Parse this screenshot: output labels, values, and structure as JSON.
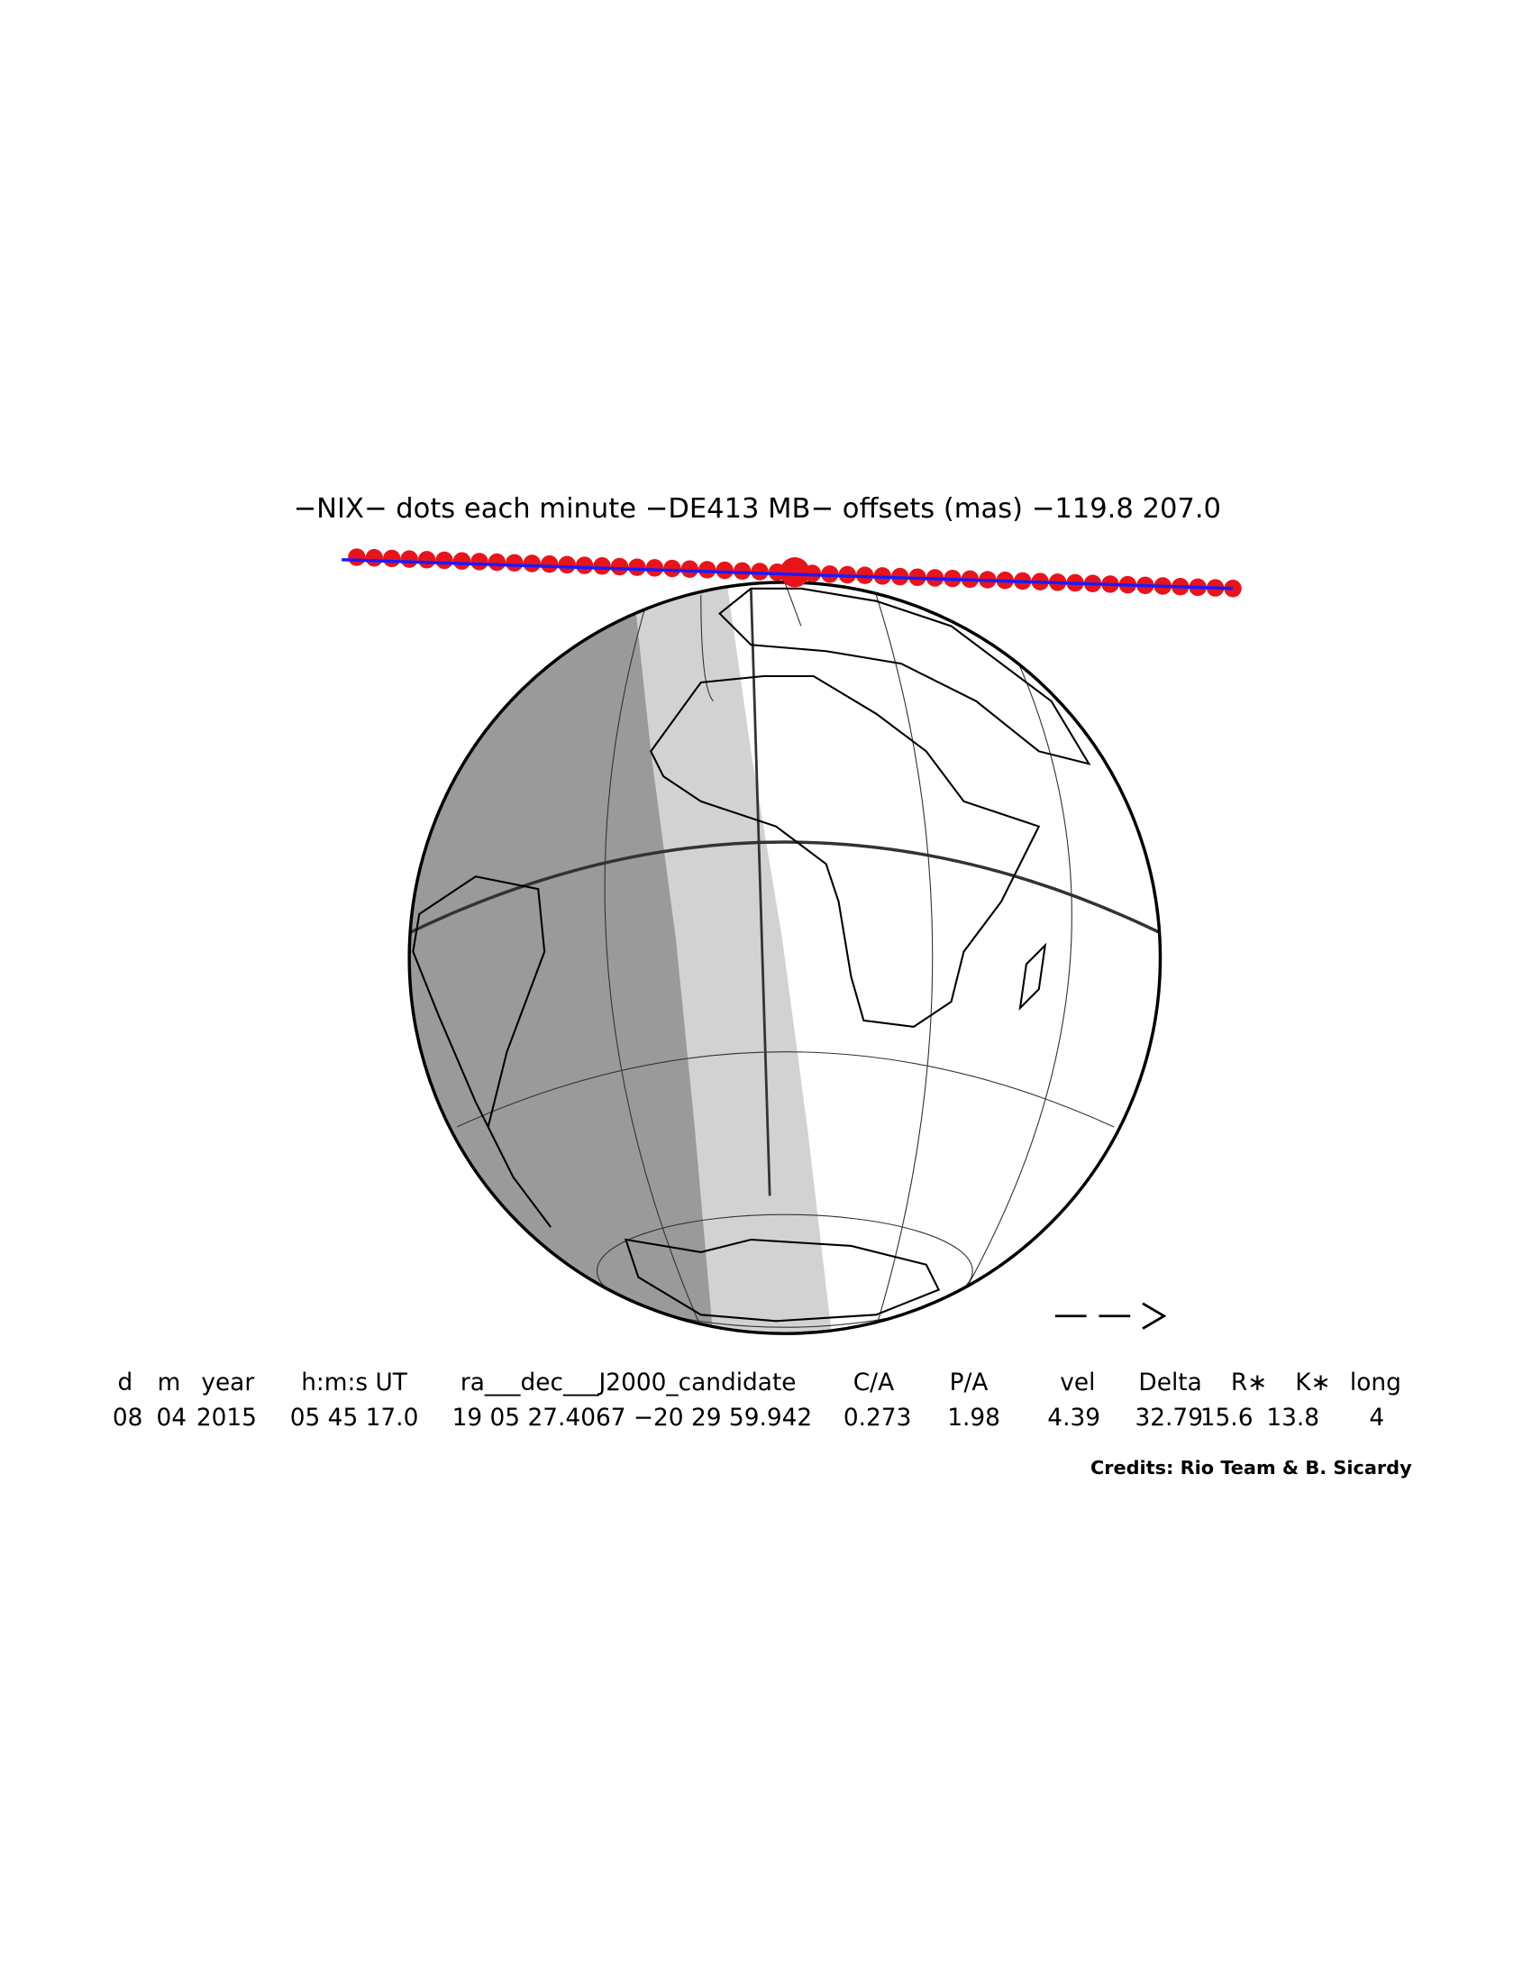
{
  "title": "−NIX− dots each minute −DE413 MB− offsets (mas) −119.8   207.0",
  "table": {
    "headers": [
      "d",
      "m",
      "year",
      "h:m:s UT",
      "ra___dec___J2000_candidate",
      "C/A",
      "P/A",
      "vel",
      "Delta",
      "R∗",
      "K∗",
      "long"
    ],
    "values": [
      "08",
      "04",
      "2015",
      "05 45 17.0",
      "19 05 27.4067 −20 29 59.942",
      "0.273",
      "1.98",
      "4.39",
      "32.79",
      "15.6",
      "13.8",
      "4"
    ]
  },
  "credits": "Credits: Rio Team & B. Sicardy"
}
